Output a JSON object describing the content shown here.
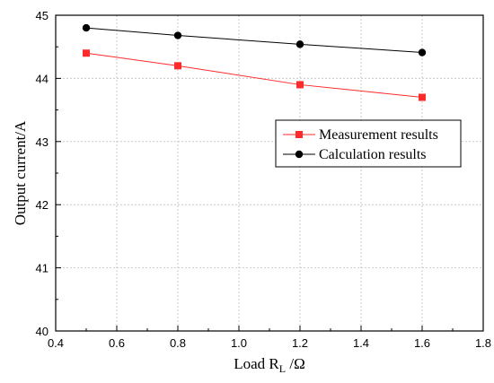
{
  "chart_data": {
    "type": "line",
    "title": "",
    "xlabel": {
      "main": "Load R",
      "sub": "L",
      "unit": " /Ω"
    },
    "ylabel": "Output current/A",
    "xlim": [
      0.4,
      1.8
    ],
    "ylim": [
      40,
      45
    ],
    "xticks": [
      "0.4",
      "0.6",
      "0.8",
      "1.0",
      "1.2",
      "1.4",
      "1.6",
      "1.8"
    ],
    "yticks": [
      "40",
      "41",
      "42",
      "43",
      "44",
      "45"
    ],
    "grid": true,
    "legend_position": "center-right",
    "x": [
      0.5,
      0.8,
      1.2,
      1.6
    ],
    "series": [
      {
        "name": "Measurement results",
        "values": [
          44.4,
          44.2,
          43.9,
          43.7
        ],
        "color": "#ff2a2a",
        "marker": "square"
      },
      {
        "name": "Calculation results",
        "values": [
          44.8,
          44.68,
          44.54,
          44.41
        ],
        "color": "#000000",
        "marker": "circle"
      }
    ]
  }
}
